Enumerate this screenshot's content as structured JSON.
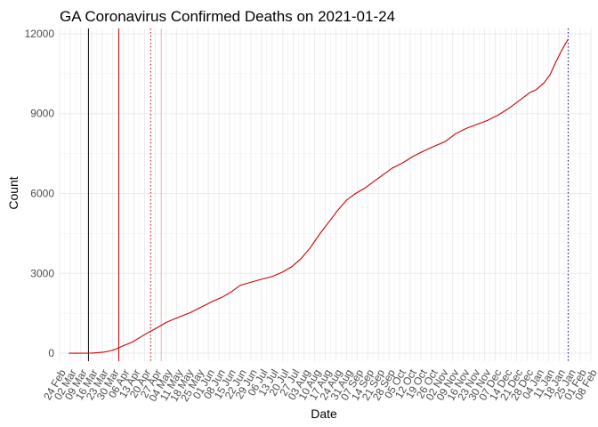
{
  "chart_data": {
    "type": "line",
    "title": "GA Coronavirus Confirmed Deaths on 2021-01-24",
    "xlabel": "Date",
    "ylabel": "Count",
    "xlim": [
      "2020-02-24",
      "2021-02-08"
    ],
    "ylim": [
      -300,
      12200
    ],
    "y_ticks": [
      0,
      3000,
      6000,
      9000,
      12000
    ],
    "y_tick_labels": [
      "0",
      "3000",
      "6000",
      "9000",
      "12000"
    ],
    "x_tick_dates": [
      "2020-02-24",
      "2020-03-02",
      "2020-03-09",
      "2020-03-16",
      "2020-03-23",
      "2020-03-30",
      "2020-04-06",
      "2020-04-13",
      "2020-04-20",
      "2020-04-27",
      "2020-05-04",
      "2020-05-11",
      "2020-05-18",
      "2020-05-25",
      "2020-06-01",
      "2020-06-08",
      "2020-06-15",
      "2020-06-22",
      "2020-06-29",
      "2020-07-06",
      "2020-07-13",
      "2020-07-20",
      "2020-07-27",
      "2020-08-03",
      "2020-08-10",
      "2020-08-17",
      "2020-08-24",
      "2020-08-31",
      "2020-09-07",
      "2020-09-14",
      "2020-09-21",
      "2020-09-28",
      "2020-10-05",
      "2020-10-12",
      "2020-10-19",
      "2020-10-26",
      "2020-11-02",
      "2020-11-09",
      "2020-11-16",
      "2020-11-23",
      "2020-11-30",
      "2020-12-07",
      "2020-12-14",
      "2020-12-21",
      "2020-12-28",
      "2021-01-04",
      "2021-01-11",
      "2021-01-18",
      "2021-01-25",
      "2021-02-01",
      "2021-02-08"
    ],
    "x_tick_labels": [
      "24 Feb",
      "02 Mar",
      "09 Mar",
      "16 Mar",
      "23 Mar",
      "30 Mar",
      "06 Apr",
      "13 Apr",
      "20 Apr",
      "27 Apr",
      "04 May",
      "11 May",
      "18 May",
      "25 May",
      "01 Jun",
      "08 Jun",
      "15 Jun",
      "22 Jun",
      "29 Jun",
      "06 Jul",
      "13 Jul",
      "20 Jul",
      "27 Jul",
      "03 Aug",
      "10 Aug",
      "17 Aug",
      "24 Aug",
      "31 Aug",
      "07 Sep",
      "14 Sep",
      "21 Sep",
      "28 Sep",
      "05 Oct",
      "12 Oct",
      "19 Oct",
      "26 Oct",
      "02 Nov",
      "09 Nov",
      "16 Nov",
      "23 Nov",
      "30 Nov",
      "07 Dec",
      "14 Dec",
      "21 Dec",
      "28 Dec",
      "04 Jan",
      "11 Jan",
      "18 Jan",
      "25 Jan",
      "01 Feb",
      "08 Feb"
    ],
    "grid": true,
    "series": [
      {
        "color": "#cc0000",
        "points": [
          [
            "2020-03-01",
            0
          ],
          [
            "2020-03-10",
            0
          ],
          [
            "2020-03-16",
            2
          ],
          [
            "2020-03-20",
            20
          ],
          [
            "2020-03-24",
            40
          ],
          [
            "2020-03-28",
            80
          ],
          [
            "2020-04-01",
            150
          ],
          [
            "2020-04-06",
            280
          ],
          [
            "2020-04-12",
            420
          ],
          [
            "2020-04-20",
            700
          ],
          [
            "2020-04-28",
            950
          ],
          [
            "2020-05-04",
            1150
          ],
          [
            "2020-05-11",
            1320
          ],
          [
            "2020-05-20",
            1520
          ],
          [
            "2020-05-28",
            1750
          ],
          [
            "2020-06-04",
            1950
          ],
          [
            "2020-06-10",
            2100
          ],
          [
            "2020-06-16",
            2300
          ],
          [
            "2020-06-22",
            2550
          ],
          [
            "2020-06-28",
            2650
          ],
          [
            "2020-07-06",
            2780
          ],
          [
            "2020-07-13",
            2880
          ],
          [
            "2020-07-20",
            3050
          ],
          [
            "2020-07-26",
            3250
          ],
          [
            "2020-08-01",
            3550
          ],
          [
            "2020-08-07",
            3950
          ],
          [
            "2020-08-13",
            4450
          ],
          [
            "2020-08-19",
            4900
          ],
          [
            "2020-08-25",
            5350
          ],
          [
            "2020-08-31",
            5750
          ],
          [
            "2020-09-06",
            6000
          ],
          [
            "2020-09-12",
            6200
          ],
          [
            "2020-09-18",
            6450
          ],
          [
            "2020-09-24",
            6700
          ],
          [
            "2020-09-30",
            6950
          ],
          [
            "2020-10-07",
            7150
          ],
          [
            "2020-10-14",
            7400
          ],
          [
            "2020-10-21",
            7600
          ],
          [
            "2020-10-28",
            7780
          ],
          [
            "2020-11-04",
            7950
          ],
          [
            "2020-11-11",
            8250
          ],
          [
            "2020-11-18",
            8450
          ],
          [
            "2020-11-25",
            8600
          ],
          [
            "2020-12-02",
            8750
          ],
          [
            "2020-12-09",
            8950
          ],
          [
            "2020-12-16",
            9200
          ],
          [
            "2020-12-23",
            9500
          ],
          [
            "2020-12-30",
            9800
          ],
          [
            "2021-01-03",
            9900
          ],
          [
            "2021-01-08",
            10150
          ],
          [
            "2021-01-12",
            10450
          ],
          [
            "2021-01-16",
            10950
          ],
          [
            "2021-01-20",
            11400
          ],
          [
            "2021-01-24",
            11800
          ]
        ]
      }
    ],
    "vertical_lines": [
      {
        "date": "2020-03-14",
        "color": "#000000",
        "style": "solid"
      },
      {
        "date": "2020-04-03",
        "color": "#cc0000",
        "style": "solid"
      },
      {
        "date": "2020-04-24",
        "color": "#cc0000",
        "style": "dotted"
      },
      {
        "date": "2020-05-01",
        "color": "#f2b8b8",
        "style": "solid"
      },
      {
        "date": "2021-01-24",
        "color": "#00008b",
        "style": "dotted"
      }
    ]
  }
}
